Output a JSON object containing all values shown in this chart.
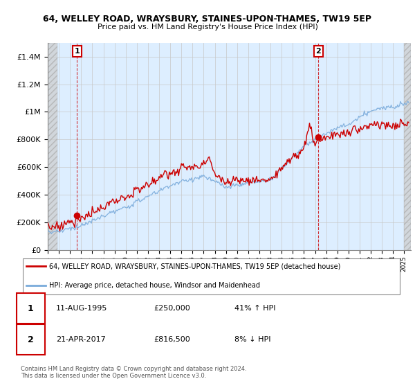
{
  "title": "64, WELLEY ROAD, WRAYSBURY, STAINES-UPON-THAMES, TW19 5EP",
  "subtitle": "Price paid vs. HM Land Registry's House Price Index (HPI)",
  "ylim": [
    0,
    1500000
  ],
  "yticks": [
    0,
    200000,
    400000,
    600000,
    800000,
    1000000,
    1200000,
    1400000
  ],
  "ytick_labels": [
    "£0",
    "£200K",
    "£400K",
    "£600K",
    "£800K",
    "£1M",
    "£1.2M",
    "£1.4M"
  ],
  "sale1_year": 1995.62,
  "sale1_price": 250000,
  "sale1_label": "1",
  "sale1_date": "11-AUG-1995",
  "sale1_hpi": "41% ↑ HPI",
  "sale2_year": 2017.31,
  "sale2_price": 816500,
  "sale2_label": "2",
  "sale2_date": "21-APR-2017",
  "sale2_hpi": "8% ↓ HPI",
  "legend_line1": "64, WELLEY ROAD, WRAYSBURY, STAINES-UPON-THAMES, TW19 5EP (detached house)",
  "legend_line2": "HPI: Average price, detached house, Windsor and Maidenhead",
  "footer": "Contains HM Land Registry data © Crown copyright and database right 2024.\nThis data is licensed under the Open Government Licence v3.0.",
  "red_color": "#cc0000",
  "blue_color": "#7aabdb",
  "grid_color": "#c8c8c8",
  "plot_bg": "#ddeeff"
}
